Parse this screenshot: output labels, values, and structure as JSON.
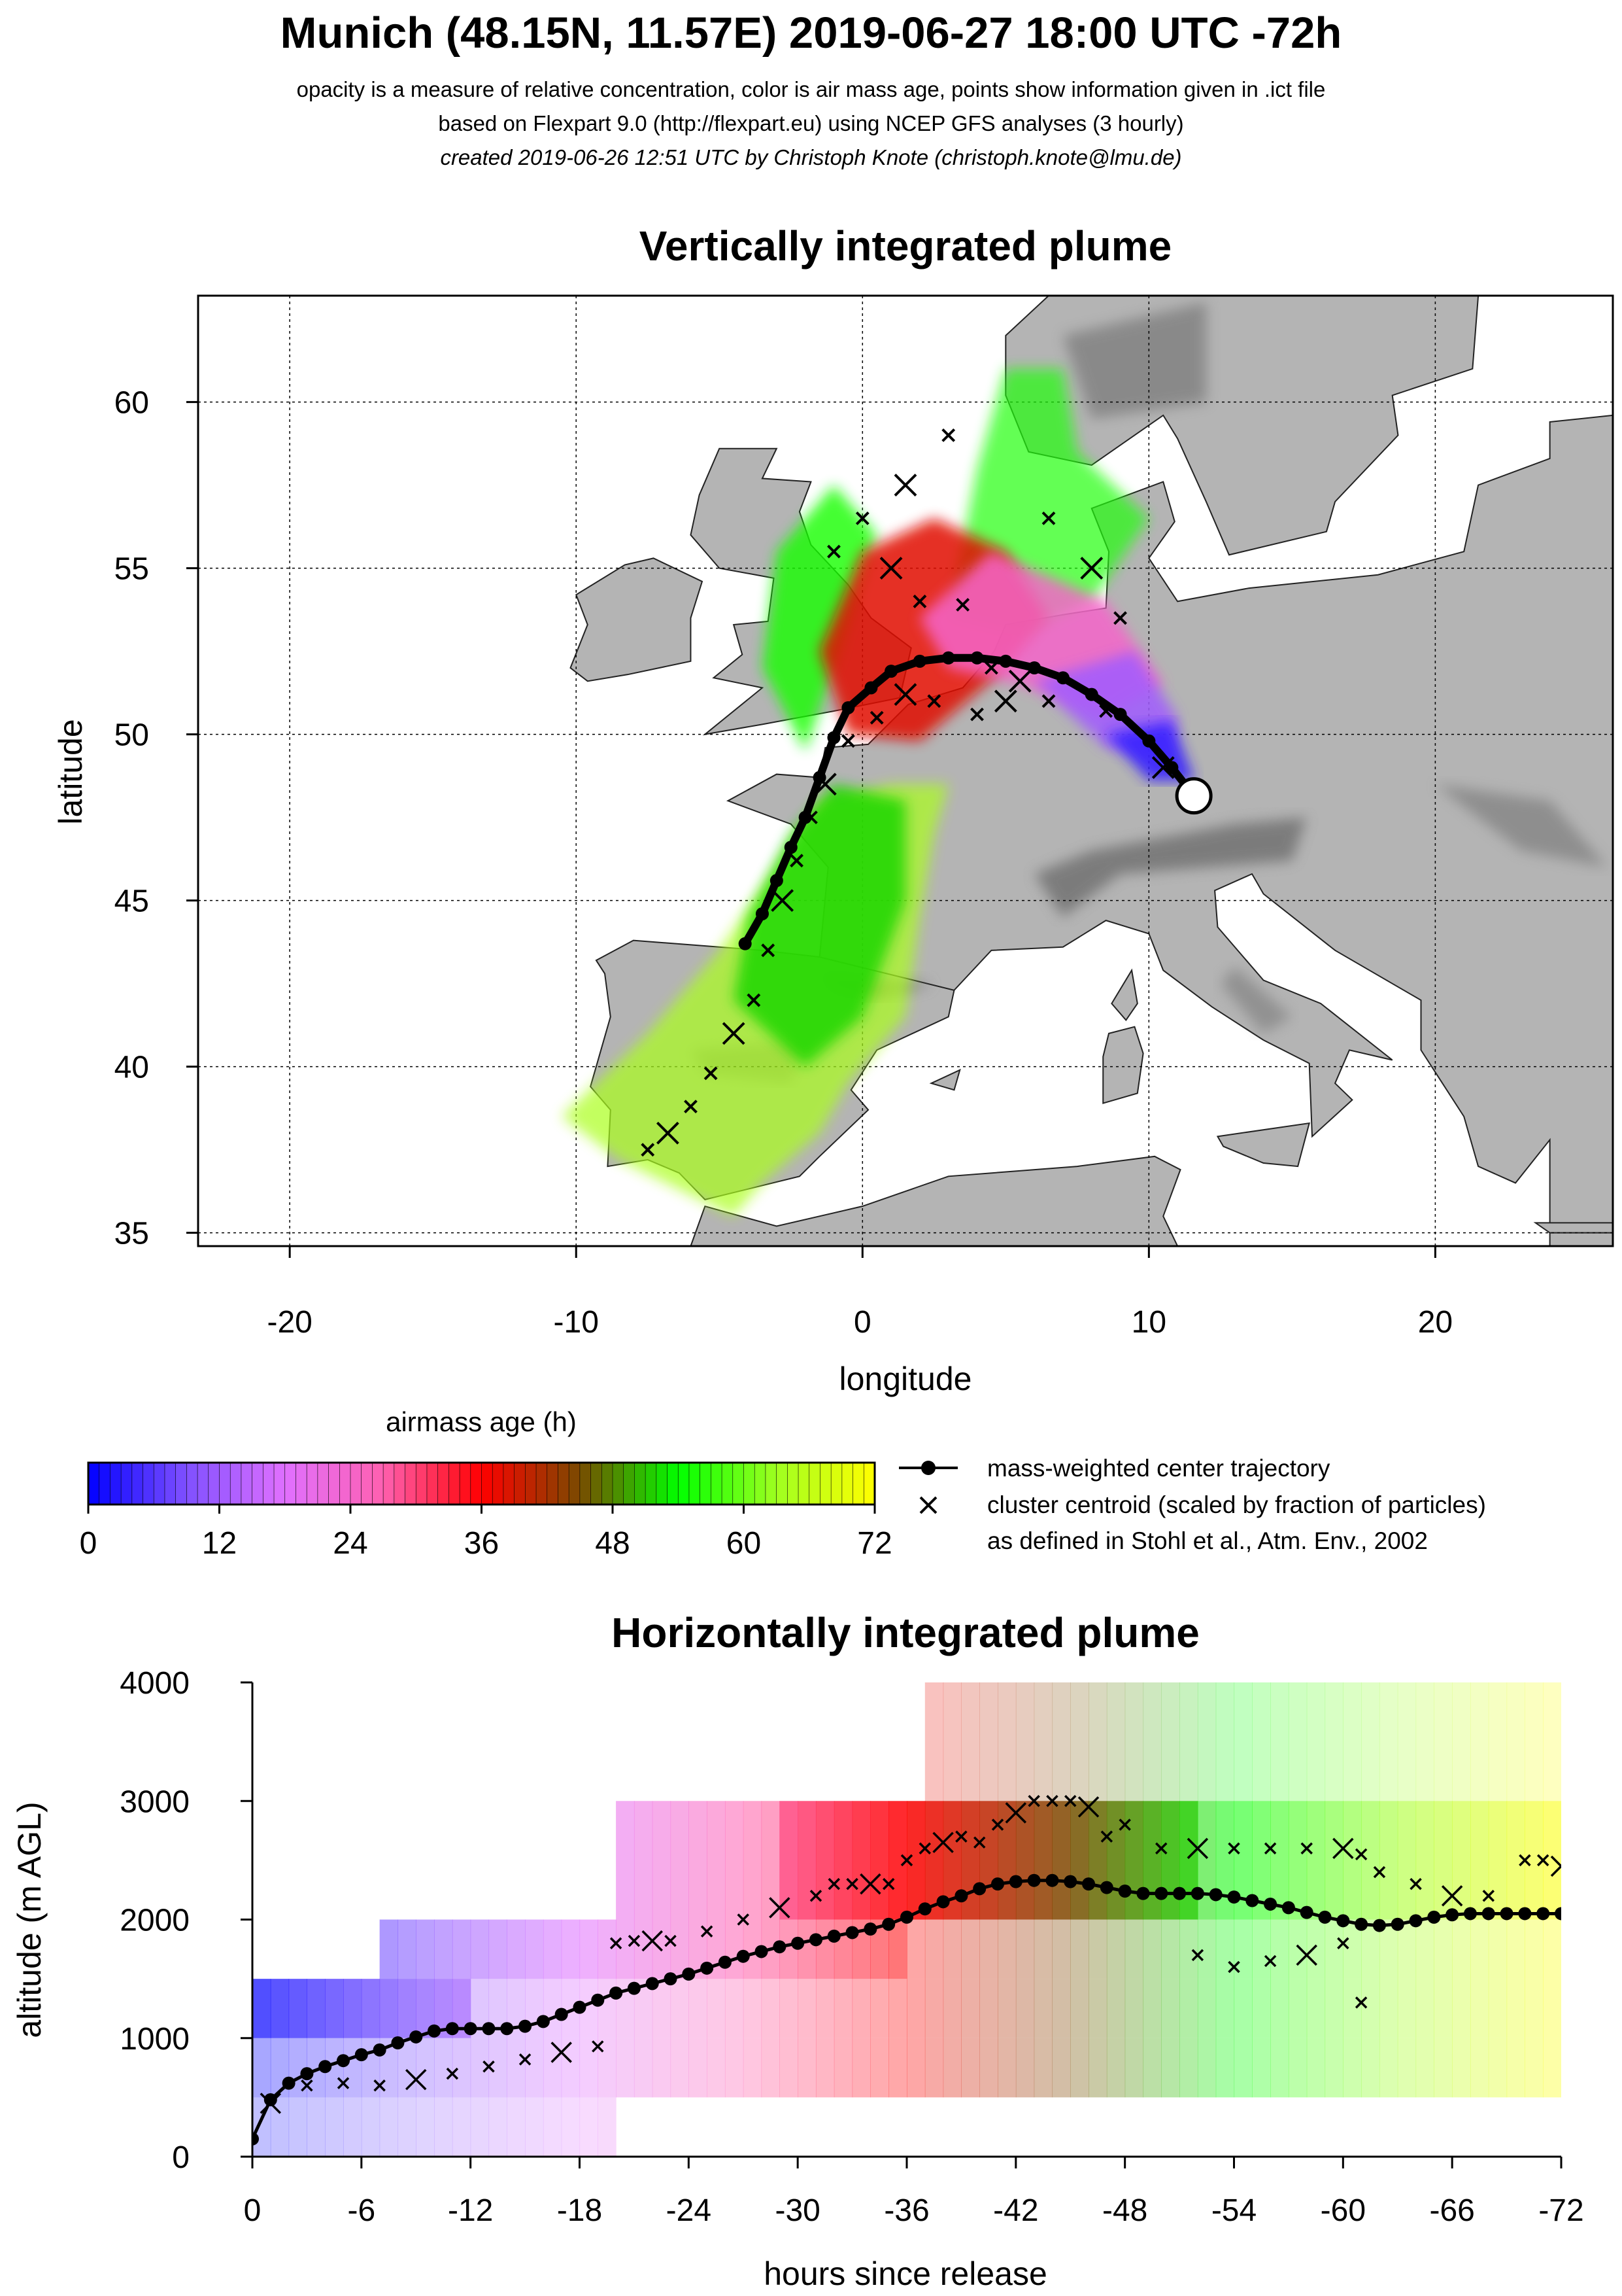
{
  "header": {
    "title": "Munich (48.15N, 11.57E) 2019-06-27 18:00 UTC -72h",
    "line1": "opacity is a measure of relative concentration, color is air mass age, points show information given in .ict file",
    "line2": "based on Flexpart 9.0 (http://flexpart.eu) using NCEP GFS analyses (3 hourly)",
    "line3": "created 2019-06-26 12:51 UTC by Christoph Knote (christoph.knote@lmu.de)"
  },
  "colors": {
    "age_scale": [
      "#0000ff",
      "#8050ff",
      "#e070ff",
      "#ff60b0",
      "#ff0000",
      "#7a4a00",
      "#00ff00",
      "#a0ff20",
      "#ffff00"
    ],
    "land": "#b4b4b4",
    "center_trajectory": "#000000"
  },
  "legend": {
    "colorbar_title": "airmass age (h)",
    "colorbar_ticks": [
      "0",
      "12",
      "24",
      "36",
      "48",
      "60",
      "72"
    ],
    "line_label": "mass-weighted center trajectory",
    "cross_label": "cluster centroid (scaled by fraction of particles)",
    "cross_label2": "as defined in Stohl et al., Atm. Env., 2002"
  },
  "chart_data": [
    {
      "type": "scatter",
      "title": "Vertically integrated plume",
      "xlabel": "longitude",
      "ylabel": "latitude",
      "xlim": [
        -23.2,
        26.2
      ],
      "ylim": [
        34.6,
        63.2
      ],
      "xticks": [
        "-20",
        "-10",
        "0",
        "10",
        "20"
      ],
      "yticks": [
        "35",
        "40",
        "45",
        "50",
        "55",
        "60"
      ],
      "grid": true,
      "release_point": {
        "lon": 11.57,
        "lat": 48.15
      },
      "series": [
        {
          "name": "mass-weighted center trajectory",
          "lon": [
            11.57,
            10.8,
            10.0,
            9.0,
            8.0,
            7.0,
            6.0,
            5.0,
            4.0,
            3.0,
            2.0,
            1.0,
            0.3,
            -0.5,
            -1.0,
            -1.5,
            -2.0,
            -2.5,
            -3.0,
            -3.5,
            -4.1
          ],
          "lat": [
            48.15,
            49.0,
            49.8,
            50.6,
            51.2,
            51.7,
            52.0,
            52.2,
            52.3,
            52.3,
            52.2,
            51.9,
            51.4,
            50.8,
            49.9,
            48.7,
            47.5,
            46.6,
            45.6,
            44.6,
            43.7
          ]
        },
        {
          "name": "cluster centroid (scaled by fraction of particles)",
          "lon": [
            10.5,
            8.5,
            6.5,
            5.0,
            4.0,
            2.5,
            1.5,
            0.5,
            -0.5,
            -1.3,
            -1.8,
            -2.3,
            -2.8,
            -3.3,
            -3.8,
            -4.5,
            -5.3,
            -6.0,
            -6.8,
            -7.5,
            4.5,
            5.5,
            3.5,
            2.0,
            1.0,
            0.0,
            -1.0,
            1.5,
            3.0,
            6.5,
            8.0,
            9.0
          ],
          "lat": [
            49.0,
            50.7,
            51.0,
            51.0,
            50.6,
            51.0,
            51.2,
            50.5,
            49.8,
            48.5,
            47.5,
            46.2,
            45.0,
            43.5,
            42.0,
            41.0,
            39.8,
            38.8,
            38.0,
            37.5,
            52.0,
            51.6,
            53.9,
            54.0,
            55.0,
            56.5,
            55.5,
            57.5,
            59.0,
            56.5,
            55.0,
            53.5
          ]
        }
      ]
    },
    {
      "type": "scatter",
      "title": "Horizontally integrated plume",
      "xlabel": "hours since release",
      "ylabel": "altitude (m AGL)",
      "xlim": [
        0,
        -72
      ],
      "ylim": [
        0,
        4000
      ],
      "xticks": [
        "0",
        "-6",
        "-12",
        "-18",
        "-24",
        "-30",
        "-36",
        "-42",
        "-48",
        "-54",
        "-60",
        "-66",
        "-72"
      ],
      "yticks": [
        "0",
        "1000",
        "2000",
        "3000",
        "4000"
      ],
      "series": [
        {
          "name": "mass-weighted center trajectory",
          "hours": [
            0,
            -1,
            -2,
            -3,
            -4,
            -5,
            -6,
            -7,
            -8,
            -9,
            -10,
            -11,
            -12,
            -13,
            -14,
            -15,
            -16,
            -17,
            -18,
            -19,
            -20,
            -21,
            -22,
            -23,
            -24,
            -25,
            -26,
            -27,
            -28,
            -29,
            -30,
            -31,
            -32,
            -33,
            -34,
            -35,
            -36,
            -37,
            -38,
            -39,
            -40,
            -41,
            -42,
            -43,
            -44,
            -45,
            -46,
            -47,
            -48,
            -49,
            -50,
            -51,
            -52,
            -53,
            -54,
            -55,
            -56,
            -57,
            -58,
            -59,
            -60,
            -61,
            -62,
            -63,
            -64,
            -65,
            -66,
            -67,
            -68,
            -69,
            -70,
            -71,
            -72
          ],
          "altitude": [
            150,
            480,
            620,
            700,
            760,
            810,
            860,
            900,
            960,
            1010,
            1060,
            1080,
            1080,
            1080,
            1080,
            1100,
            1140,
            1200,
            1260,
            1320,
            1380,
            1420,
            1460,
            1500,
            1540,
            1590,
            1640,
            1690,
            1730,
            1770,
            1800,
            1830,
            1860,
            1890,
            1920,
            1960,
            2020,
            2090,
            2150,
            2200,
            2260,
            2300,
            2320,
            2330,
            2330,
            2320,
            2300,
            2270,
            2240,
            2220,
            2220,
            2220,
            2220,
            2210,
            2190,
            2160,
            2130,
            2100,
            2060,
            2020,
            1990,
            1960,
            1950,
            1960,
            1990,
            2020,
            2040,
            2050,
            2050,
            2050,
            2050,
            2050,
            2050
          ]
        },
        {
          "name": "cluster centroid (scaled by fraction of particles)",
          "hours": [
            -1,
            -3,
            -5,
            -7,
            -9,
            -11,
            -13,
            -15,
            -17,
            -19,
            -20,
            -21,
            -22,
            -23,
            -25,
            -27,
            -29,
            -31,
            -32,
            -33,
            -34,
            -35,
            -36,
            -37,
            -38,
            -39,
            -40,
            -41,
            -42,
            -43,
            -44,
            -45,
            -46,
            -47,
            -48,
            -50,
            -52,
            -54,
            -56,
            -58,
            -60,
            -61,
            -62,
            -64,
            -66,
            -68,
            -70,
            -71,
            -72,
            -52,
            -54,
            -56,
            -58,
            -60,
            -61
          ],
          "altitude": [
            450,
            600,
            620,
            600,
            650,
            700,
            760,
            820,
            880,
            930,
            1800,
            1820,
            1820,
            1820,
            1900,
            2000,
            2100,
            2200,
            2300,
            2300,
            2300,
            2300,
            2500,
            2600,
            2650,
            2700,
            2650,
            2800,
            2900,
            3000,
            3000,
            3000,
            2950,
            2700,
            2800,
            2600,
            2600,
            2600,
            2600,
            2600,
            2600,
            2550,
            2400,
            2300,
            2200,
            2200,
            2500,
            2500,
            2450,
            1700,
            1600,
            1650,
            1700,
            1800,
            1300
          ]
        }
      ]
    }
  ]
}
